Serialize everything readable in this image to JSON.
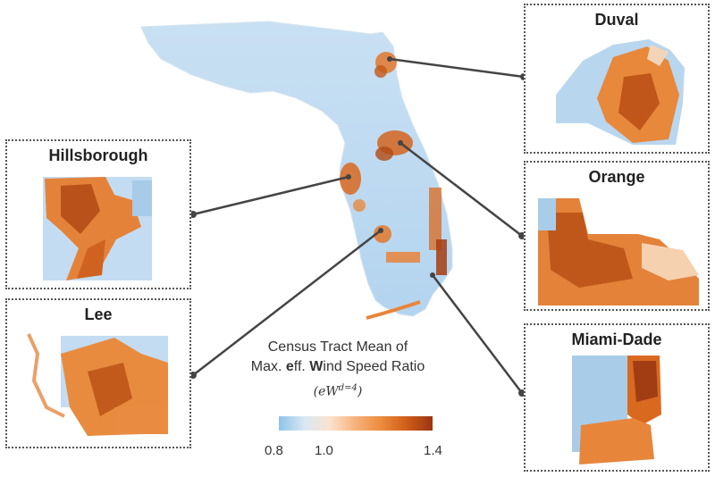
{
  "insets": [
    {
      "key": "duval",
      "title": "Duval"
    },
    {
      "key": "hillsborough",
      "title": "Hillsborough"
    },
    {
      "key": "orange",
      "title": "Orange"
    },
    {
      "key": "lee",
      "title": "Lee"
    },
    {
      "key": "miami_dade",
      "title": "Miami-Dade"
    }
  ],
  "legend": {
    "line1": "Census Tract Mean of",
    "line2_pre": "Max. ",
    "line2_b1": "e",
    "line2_mid": "ff. ",
    "line2_b2": "W",
    "line2_post": "ind Speed Ratio",
    "formula": "(eW",
    "formula_sup": "d=4",
    "formula_end": ")",
    "ticks": [
      "0.8",
      "1.0",
      "1.4"
    ],
    "colors": [
      "#8fc3ea",
      "#d8e8f4",
      "#fbe3cc",
      "#f6b27a",
      "#ec8a3c",
      "#cf5d1a",
      "#9a3412"
    ]
  },
  "watermark": ""
}
